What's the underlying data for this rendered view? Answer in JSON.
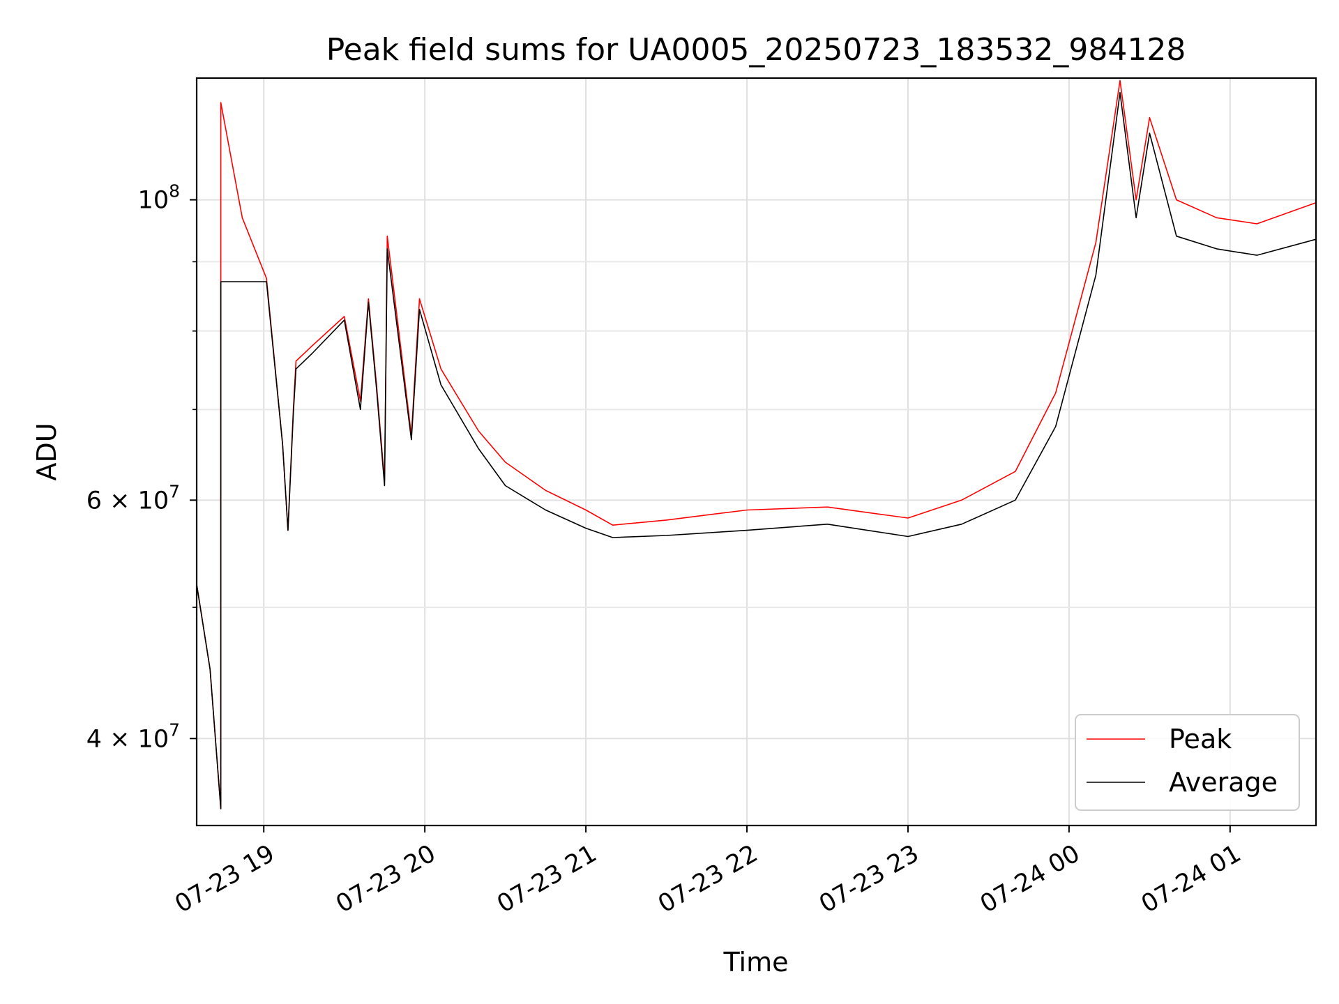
{
  "chart_data": {
    "type": "line",
    "title": "Peak field sums for UA0005_20250723_183532_984128",
    "xlabel": "Time",
    "ylabel": "ADU",
    "y_scale": "log",
    "grid": true,
    "legend_position": "lower right",
    "xlim": [
      "2025-07-23 18:35",
      "2025-07-24 01:32"
    ],
    "ylim": [
      34500000,
      123000000
    ],
    "x_ticks": [
      {
        "time": "2025-07-23 19:00",
        "label": "07-23 19"
      },
      {
        "time": "2025-07-23 20:00",
        "label": "07-23 20"
      },
      {
        "time": "2025-07-23 21:00",
        "label": "07-23 21"
      },
      {
        "time": "2025-07-23 22:00",
        "label": "07-23 22"
      },
      {
        "time": "2025-07-23 23:00",
        "label": "07-23 23"
      },
      {
        "time": "2025-07-24 00:00",
        "label": "07-24 00"
      },
      {
        "time": "2025-07-24 01:00",
        "label": "07-24 01"
      }
    ],
    "y_ticks": [
      {
        "value": 100000000,
        "base": "10",
        "exp": "8"
      },
      {
        "value": 60000000,
        "base": "6 × 10",
        "exp": "7"
      },
      {
        "value": 40000000,
        "base": "4 × 10",
        "exp": "7"
      }
    ],
    "y_minor_ticks": [
      50000000,
      70000000,
      80000000,
      90000000
    ],
    "series": [
      {
        "name": "Peak",
        "color": "#ff0000",
        "points": [
          [
            "2025-07-23 18:35",
            52000000
          ],
          [
            "2025-07-23 18:40",
            45000000
          ],
          [
            "2025-07-23 18:44",
            35500000
          ],
          [
            "2025-07-23 18:44",
            118000000
          ],
          [
            "2025-07-23 18:52",
            97000000
          ],
          [
            "2025-07-23 19:01",
            87500000
          ],
          [
            "2025-07-23 19:07",
            66000000
          ],
          [
            "2025-07-23 19:09",
            57000000
          ],
          [
            "2025-07-23 19:11",
            70000000
          ],
          [
            "2025-07-23 19:12",
            76000000
          ],
          [
            "2025-07-23 19:18",
            78000000
          ],
          [
            "2025-07-23 19:30",
            82000000
          ],
          [
            "2025-07-23 19:36",
            71000000
          ],
          [
            "2025-07-23 19:39",
            84500000
          ],
          [
            "2025-07-23 19:42",
            73000000
          ],
          [
            "2025-07-23 19:45",
            62000000
          ],
          [
            "2025-07-23 19:46",
            94000000
          ],
          [
            "2025-07-23 19:55",
            67000000
          ],
          [
            "2025-07-23 19:58",
            84500000
          ],
          [
            "2025-07-23 20:06",
            75000000
          ],
          [
            "2025-07-23 20:20",
            67500000
          ],
          [
            "2025-07-23 20:30",
            64000000
          ],
          [
            "2025-07-23 20:45",
            61000000
          ],
          [
            "2025-07-23 21:00",
            59000000
          ],
          [
            "2025-07-23 21:10",
            57500000
          ],
          [
            "2025-07-23 21:30",
            58000000
          ],
          [
            "2025-07-23 22:00",
            59000000
          ],
          [
            "2025-07-23 22:30",
            59300000
          ],
          [
            "2025-07-23 23:00",
            58200000
          ],
          [
            "2025-07-23 23:20",
            60000000
          ],
          [
            "2025-07-23 23:40",
            63000000
          ],
          [
            "2025-07-23 23:55",
            72000000
          ],
          [
            "2025-07-24 00:10",
            93000000
          ],
          [
            "2025-07-24 00:19",
            122500000
          ],
          [
            "2025-07-24 00:25",
            100000000
          ],
          [
            "2025-07-24 00:30",
            115000000
          ],
          [
            "2025-07-24 00:40",
            100000000
          ],
          [
            "2025-07-24 00:55",
            97000000
          ],
          [
            "2025-07-24 01:10",
            96000000
          ],
          [
            "2025-07-24 01:32",
            99500000
          ]
        ]
      },
      {
        "name": "Average",
        "color": "#000000",
        "points": [
          [
            "2025-07-23 18:35",
            52000000
          ],
          [
            "2025-07-23 18:40",
            45000000
          ],
          [
            "2025-07-23 18:44",
            35500000
          ],
          [
            "2025-07-23 18:44",
            87000000
          ],
          [
            "2025-07-23 19:01",
            87000000
          ],
          [
            "2025-07-23 19:07",
            66000000
          ],
          [
            "2025-07-23 19:09",
            57000000
          ],
          [
            "2025-07-23 19:11",
            69500000
          ],
          [
            "2025-07-23 19:12",
            75000000
          ],
          [
            "2025-07-23 19:18",
            77000000
          ],
          [
            "2025-07-23 19:30",
            81500000
          ],
          [
            "2025-07-23 19:36",
            70000000
          ],
          [
            "2025-07-23 19:39",
            84000000
          ],
          [
            "2025-07-23 19:42",
            72500000
          ],
          [
            "2025-07-23 19:45",
            61500000
          ],
          [
            "2025-07-23 19:46",
            92000000
          ],
          [
            "2025-07-23 19:55",
            66500000
          ],
          [
            "2025-07-23 19:58",
            83000000
          ],
          [
            "2025-07-23 20:06",
            73000000
          ],
          [
            "2025-07-23 20:20",
            65500000
          ],
          [
            "2025-07-23 20:30",
            61500000
          ],
          [
            "2025-07-23 20:45",
            59000000
          ],
          [
            "2025-07-23 21:00",
            57200000
          ],
          [
            "2025-07-23 21:10",
            56300000
          ],
          [
            "2025-07-23 21:30",
            56500000
          ],
          [
            "2025-07-23 22:00",
            57000000
          ],
          [
            "2025-07-23 22:30",
            57600000
          ],
          [
            "2025-07-23 23:00",
            56400000
          ],
          [
            "2025-07-23 23:20",
            57600000
          ],
          [
            "2025-07-23 23:40",
            60000000
          ],
          [
            "2025-07-23 23:55",
            68000000
          ],
          [
            "2025-07-24 00:10",
            88000000
          ],
          [
            "2025-07-24 00:19",
            120000000
          ],
          [
            "2025-07-24 00:25",
            97000000
          ],
          [
            "2025-07-24 00:30",
            112000000
          ],
          [
            "2025-07-24 00:40",
            94000000
          ],
          [
            "2025-07-24 00:55",
            92000000
          ],
          [
            "2025-07-24 01:10",
            91000000
          ],
          [
            "2025-07-24 01:32",
            93500000
          ]
        ]
      }
    ]
  }
}
